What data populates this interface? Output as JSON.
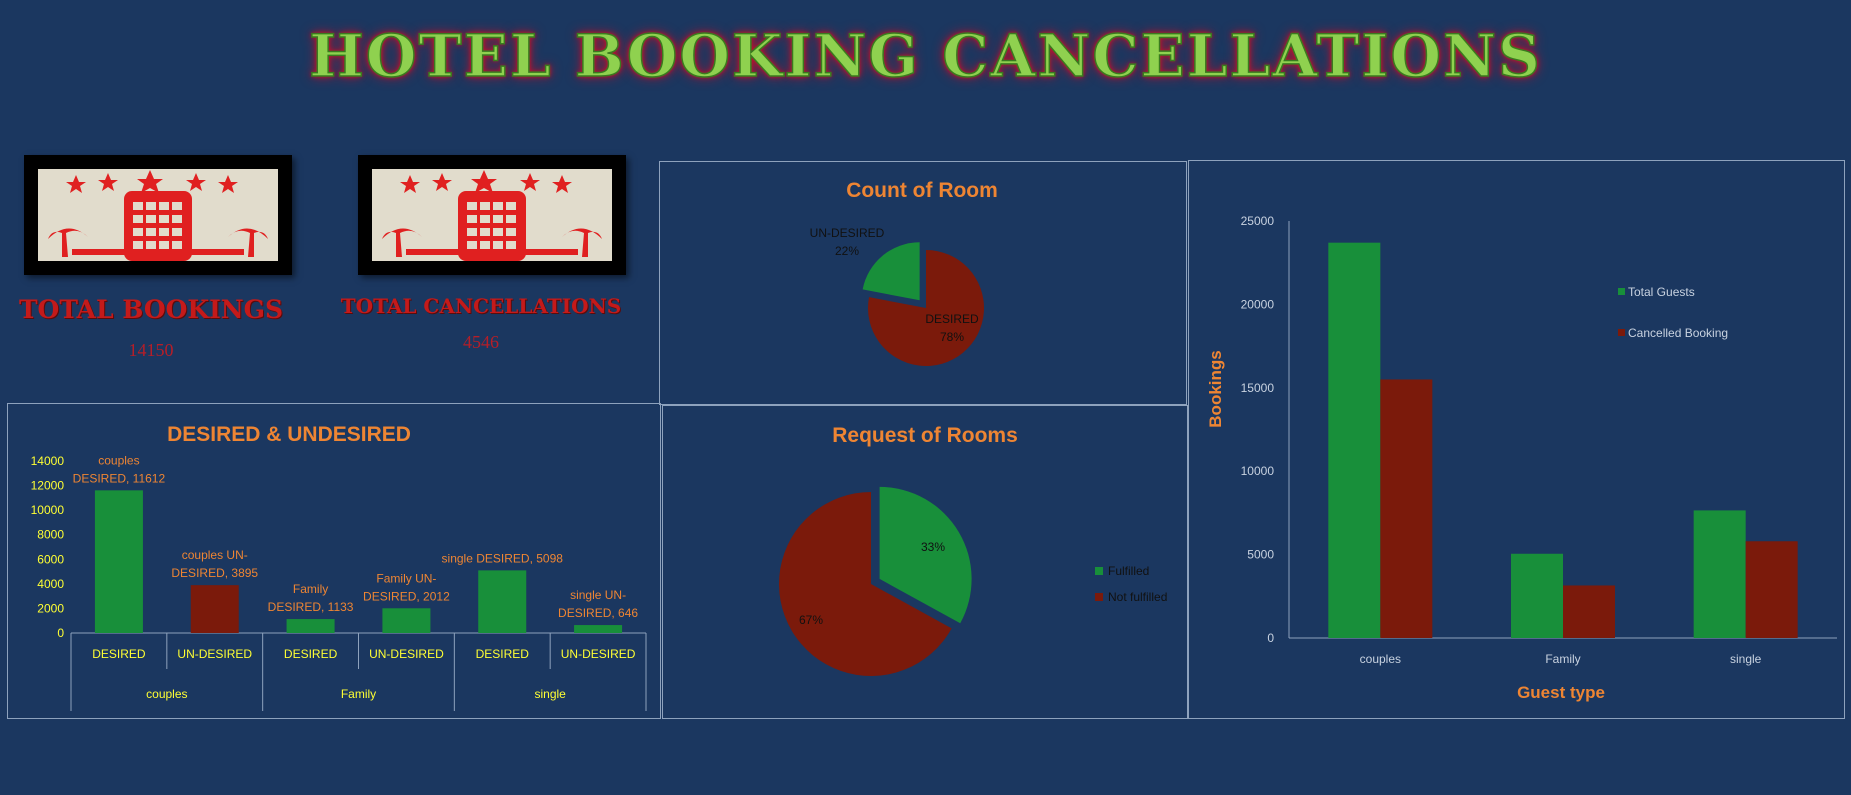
{
  "page": {
    "title": "HOTEL BOOKING CANCELLATIONS",
    "colors": {
      "background": "#1b3760",
      "green": "#188f3a",
      "red": "#7b1a0b",
      "orange": "#ee8533",
      "yellow": "#ffff33"
    }
  },
  "kpis": [
    {
      "label": "TOTAL  BOOKINGS",
      "value": "14150",
      "icon": "hotel-building-icon"
    },
    {
      "label": "TOTAL CANCELLATIONS",
      "value": "4546",
      "icon": "hotel-building-icon"
    }
  ],
  "chart_data": [
    {
      "id": "count-of-room",
      "type": "pie",
      "title": "Count of Room",
      "slices": [
        {
          "label": "UN-DESIRED",
          "value": 22,
          "pct_label": "22%",
          "color": "#188f3a"
        },
        {
          "label": "DESIRED",
          "value": 78,
          "pct_label": "78%",
          "color": "#7b1a0b"
        }
      ]
    },
    {
      "id": "desired-undesired",
      "type": "bar",
      "title": "DESIRED & UNDESIRED",
      "ylim": [
        0,
        14000
      ],
      "yticks": [
        "0",
        "2000",
        "4000",
        "6000",
        "8000",
        "10000",
        "12000",
        "14000"
      ],
      "groups": [
        "couples",
        "Family",
        "single"
      ],
      "bars": [
        {
          "group": "couples",
          "category": "DESIRED",
          "value": 11612,
          "color": "#188f3a",
          "label_lines": [
            "couples",
            "DESIRED, 11612"
          ]
        },
        {
          "group": "couples",
          "category": "UN-DESIRED",
          "value": 3895,
          "color": "#7b1a0b",
          "label_lines": [
            "couples UN-",
            "DESIRED, 3895"
          ]
        },
        {
          "group": "Family",
          "category": "DESIRED",
          "value": 1133,
          "color": "#188f3a",
          "label_lines": [
            "Family",
            "DESIRED, 1133"
          ]
        },
        {
          "group": "Family",
          "category": "UN-DESIRED",
          "value": 2012,
          "color": "#188f3a",
          "label_lines": [
            "Family UN-",
            "DESIRED, 2012"
          ]
        },
        {
          "group": "single",
          "category": "DESIRED",
          "value": 5098,
          "color": "#188f3a",
          "label_lines": [
            "single DESIRED, 5098"
          ]
        },
        {
          "group": "single",
          "category": "UN-DESIRED",
          "value": 646,
          "color": "#188f3a",
          "label_lines": [
            "single UN-",
            "DESIRED, 646"
          ]
        }
      ]
    },
    {
      "id": "request-of-rooms",
      "type": "pie",
      "title": "Request of Rooms",
      "legend": "right",
      "slices": [
        {
          "label": "Fulfilled",
          "value": 33,
          "pct_label": "33%",
          "color": "#188f3a",
          "exploded": true
        },
        {
          "label": "Not fulfilled",
          "value": 67,
          "pct_label": "67%",
          "color": "#7b1a0b"
        }
      ]
    },
    {
      "id": "guest-type",
      "type": "bar",
      "xlabel": "Guest type",
      "ylabel": "Bookings",
      "ylim": [
        0,
        25000
      ],
      "yticks": [
        "0",
        "5000",
        "10000",
        "15000",
        "20000",
        "25000"
      ],
      "categories": [
        "couples",
        "Family",
        "single"
      ],
      "legend": "top-right",
      "series": [
        {
          "name": "Total Guests",
          "color": "#188f3a",
          "values": [
            23700,
            5050,
            7650
          ]
        },
        {
          "name": "Cancelled Booking",
          "color": "#7b1a0b",
          "values": [
            15500,
            3150,
            5800
          ]
        }
      ]
    }
  ]
}
